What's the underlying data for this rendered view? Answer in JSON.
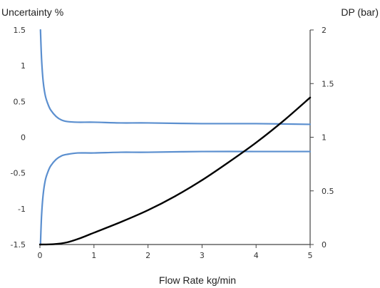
{
  "chart_data": {
    "type": "line",
    "title": "",
    "xlabel": "Flow Rate kg/min",
    "ylabel_left": "Uncertainty %",
    "ylabel_right": "DP (bar)",
    "xlim": [
      0,
      5
    ],
    "ylim_left": [
      -1.5,
      1.5
    ],
    "ylim_right": [
      0,
      2
    ],
    "grid": false,
    "legend": "none",
    "x_ticks": [
      "0",
      "1",
      "2",
      "3",
      "4",
      "5"
    ],
    "y_left_ticks": [
      "1.5",
      "1",
      "0.5",
      "0",
      "-0.5",
      "-1",
      "-1.5"
    ],
    "y_right_ticks": [
      "2",
      "1.5",
      "1",
      "0.5",
      "0"
    ],
    "series": [
      {
        "axis": "left",
        "color": "#5b8fcf",
        "x": [
          0.01,
          0.03,
          0.06,
          0.1,
          0.15,
          0.2,
          0.3,
          0.4,
          0.5,
          0.7,
          1.0,
          1.5,
          2.0,
          3.0,
          4.0,
          5.0
        ],
        "y": [
          1.5,
          1.1,
          0.78,
          0.58,
          0.46,
          0.38,
          0.29,
          0.24,
          0.22,
          0.21,
          0.21,
          0.2,
          0.2,
          0.19,
          0.19,
          0.18
        ]
      },
      {
        "axis": "left",
        "color": "#5b8fcf",
        "x": [
          0.01,
          0.03,
          0.06,
          0.1,
          0.15,
          0.2,
          0.3,
          0.4,
          0.5,
          0.7,
          1.0,
          1.5,
          2.0,
          3.0,
          4.0,
          5.0
        ],
        "y": [
          -1.5,
          -1.1,
          -0.8,
          -0.6,
          -0.48,
          -0.4,
          -0.31,
          -0.26,
          -0.24,
          -0.22,
          -0.22,
          -0.21,
          -0.21,
          -0.2,
          -0.2,
          -0.2
        ]
      },
      {
        "axis": "right",
        "color": "#000000",
        "x": [
          0,
          0.25,
          0.5,
          0.75,
          1.0,
          1.5,
          2.0,
          2.5,
          3.0,
          3.5,
          4.0,
          4.5,
          5.0
        ],
        "y": [
          0,
          0.003,
          0.02,
          0.06,
          0.11,
          0.21,
          0.32,
          0.45,
          0.6,
          0.77,
          0.95,
          1.15,
          1.37
        ]
      }
    ]
  }
}
